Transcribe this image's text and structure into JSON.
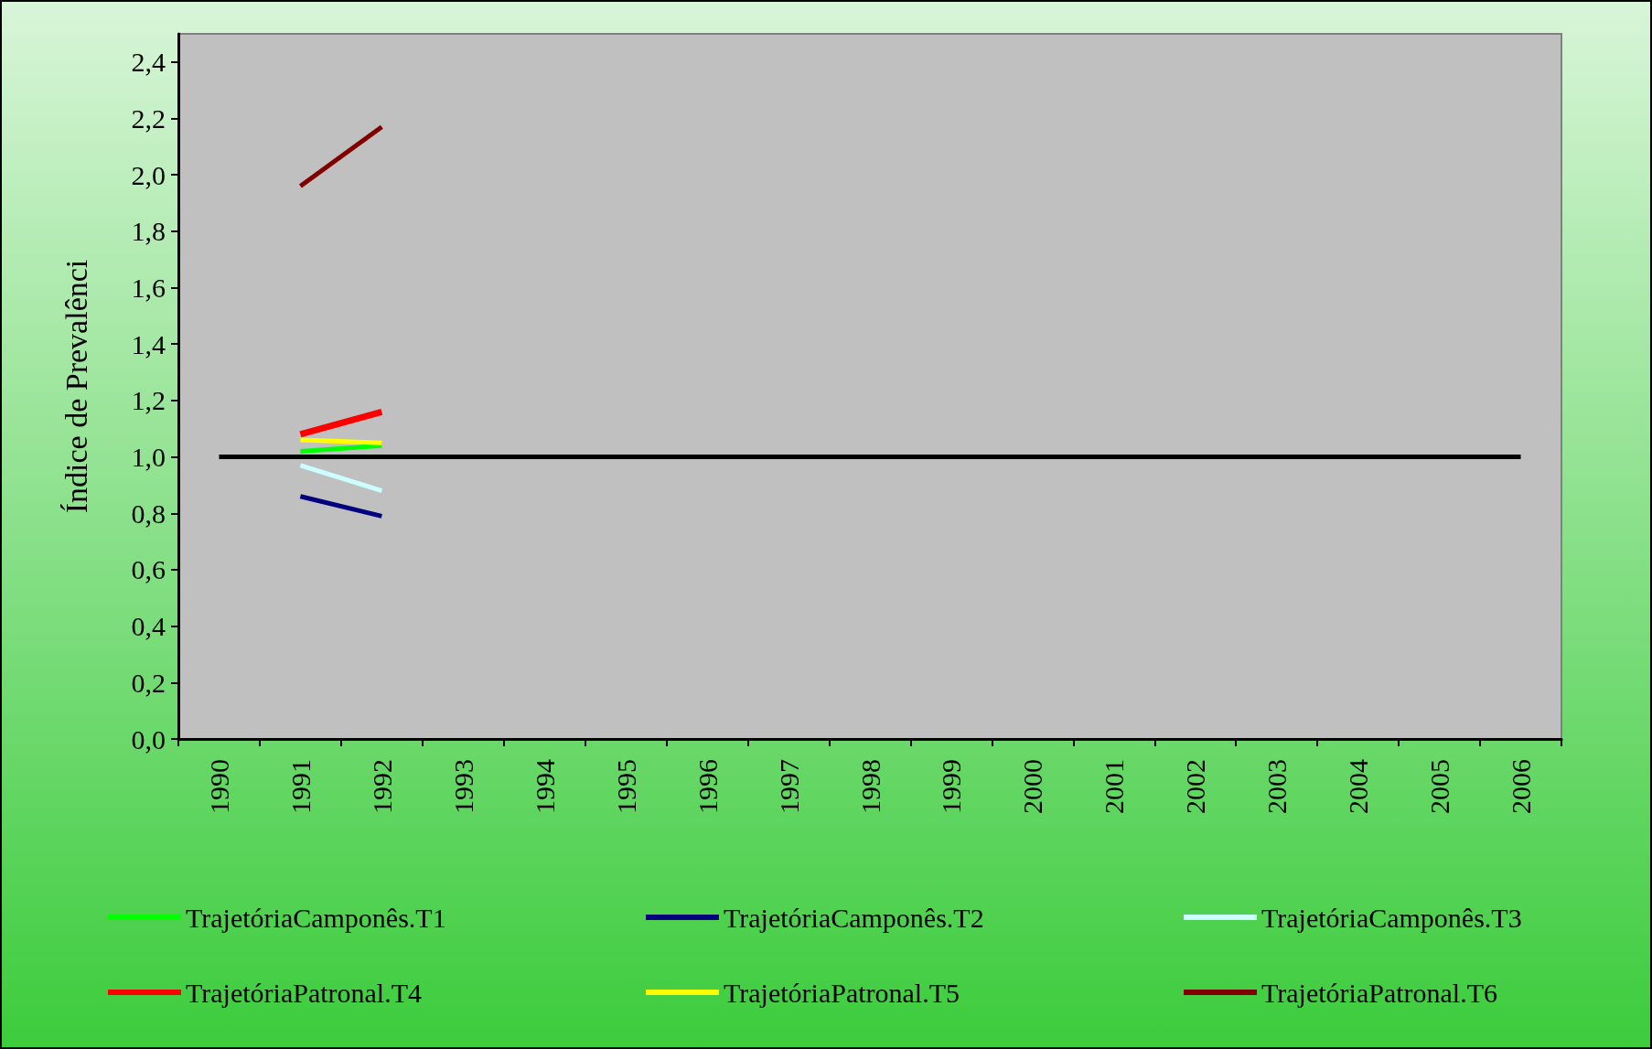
{
  "chart_data": {
    "type": "line",
    "ylabel": "Índice de Prevalênci",
    "categories": [
      "1990",
      "1991",
      "1992",
      "1993",
      "1994",
      "1995",
      "1996",
      "1997",
      "1998",
      "1999",
      "2000",
      "2001",
      "2002",
      "2003",
      "2004",
      "2005",
      "2006"
    ],
    "series": [
      {
        "name": "TrajetóriaCamponês.T1",
        "color": "#00ff00",
        "values": [
          null,
          1.02,
          1.04,
          null,
          null,
          null,
          null,
          null,
          null,
          null,
          null,
          null,
          null,
          null,
          null,
          null,
          null
        ]
      },
      {
        "name": "TrajetóriaCamponês.T2",
        "color": "#000080",
        "values": [
          null,
          0.86,
          0.79,
          null,
          null,
          null,
          null,
          null,
          null,
          null,
          null,
          null,
          null,
          null,
          null,
          null,
          null
        ]
      },
      {
        "name": "TrajetóriaCamponês.T3",
        "color": "#ccffff",
        "values": [
          null,
          0.97,
          0.88,
          null,
          null,
          null,
          null,
          null,
          null,
          null,
          null,
          null,
          null,
          null,
          null,
          null,
          null
        ]
      },
      {
        "name": "TrajetóriaPatronal.T4",
        "color": "#ff0000",
        "values": [
          null,
          1.08,
          1.16,
          null,
          null,
          null,
          null,
          null,
          null,
          null,
          null,
          null,
          null,
          null,
          null,
          null,
          null
        ]
      },
      {
        "name": "TrajetóriaPatronal.T5",
        "color": "#ffff00",
        "values": [
          null,
          1.06,
          1.05,
          null,
          null,
          null,
          null,
          null,
          null,
          null,
          null,
          null,
          null,
          null,
          null,
          null,
          null
        ]
      },
      {
        "name": "TrajetóriaPatronal.T6",
        "color": "#800000",
        "values": [
          null,
          1.96,
          2.17,
          null,
          null,
          null,
          null,
          null,
          null,
          null,
          null,
          null,
          null,
          null,
          null,
          null,
          null
        ]
      }
    ],
    "ref_lines": [
      {
        "axis": "y",
        "value": 1.0,
        "color": "#000000"
      }
    ],
    "ylim": [
      0,
      2.5
    ],
    "yticks": [
      {
        "value": 0,
        "label": "0,0"
      },
      {
        "value": 0.2,
        "label": "0,2"
      },
      {
        "value": 0.4,
        "label": "0,4"
      },
      {
        "value": 0.6,
        "label": "0,6"
      },
      {
        "value": 0.8,
        "label": "0,8"
      },
      {
        "value": 1.0,
        "label": "1,0"
      },
      {
        "value": 1.2,
        "label": "1,2"
      },
      {
        "value": 1.4,
        "label": "1,4"
      },
      {
        "value": 1.6,
        "label": "1,6"
      },
      {
        "value": 1.8,
        "label": "1,8"
      },
      {
        "value": 2.0,
        "label": "2,0"
      },
      {
        "value": 2.2,
        "label": "2,2"
      },
      {
        "value": 2.4,
        "label": "2,4"
      }
    ],
    "grid": false,
    "legend": "bottom",
    "marker": "none",
    "line_style": "solid"
  }
}
